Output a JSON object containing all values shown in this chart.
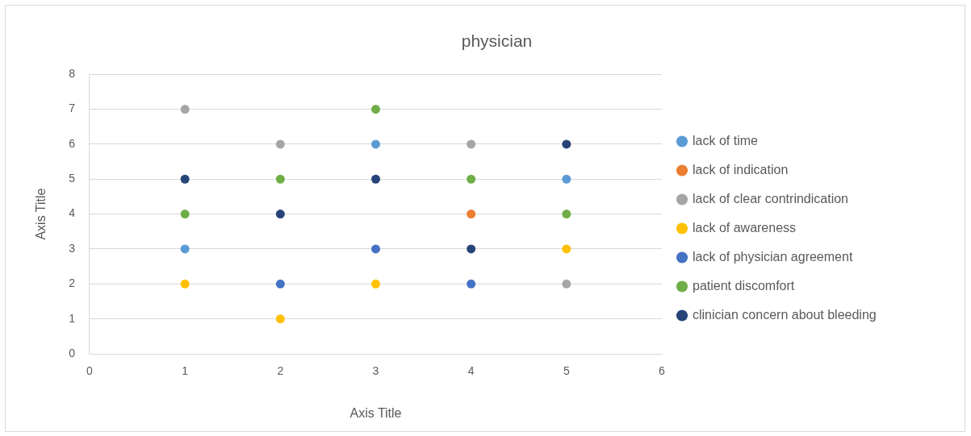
{
  "chart_data": {
    "type": "scatter",
    "title": "physician",
    "xlabel": "Axis Title",
    "ylabel": "Axis Title",
    "xlim": [
      0,
      6
    ],
    "xticks": [
      0,
      1,
      2,
      3,
      4,
      5,
      6
    ],
    "ylim": [
      0,
      8
    ],
    "yticks": [
      0,
      1,
      2,
      3,
      4,
      5,
      6,
      7,
      8
    ],
    "grid": "y",
    "legend": "right",
    "marker": "circle",
    "series": [
      {
        "name": "lack of time",
        "color": "#5b9bd5",
        "x": [
          1,
          3,
          5
        ],
        "values": [
          3,
          6,
          5
        ]
      },
      {
        "name": "lack of indication",
        "color": "#ed7d31",
        "x": [
          4
        ],
        "values": [
          4
        ]
      },
      {
        "name": "lack of clear contrindication",
        "color": "#a5a5a5",
        "x": [
          1,
          2,
          4,
          5
        ],
        "values": [
          7,
          6,
          6,
          2
        ]
      },
      {
        "name": "lack of awareness",
        "color": "#ffc000",
        "x": [
          1,
          2,
          3,
          5
        ],
        "values": [
          2,
          1,
          2,
          3
        ]
      },
      {
        "name": "lack of physician agreement",
        "color": "#4472c4",
        "x": [
          2,
          3,
          4
        ],
        "values": [
          2,
          3,
          2
        ]
      },
      {
        "name": "patient discomfort",
        "color": "#70ad47",
        "x": [
          1,
          2,
          3,
          4,
          5
        ],
        "values": [
          4,
          5,
          7,
          5,
          4
        ]
      },
      {
        "name": "clinician concern about bleeding",
        "color": "#264478",
        "x": [
          1,
          2,
          3,
          4,
          5
        ],
        "values": [
          5,
          4,
          5,
          3,
          6
        ]
      }
    ]
  }
}
